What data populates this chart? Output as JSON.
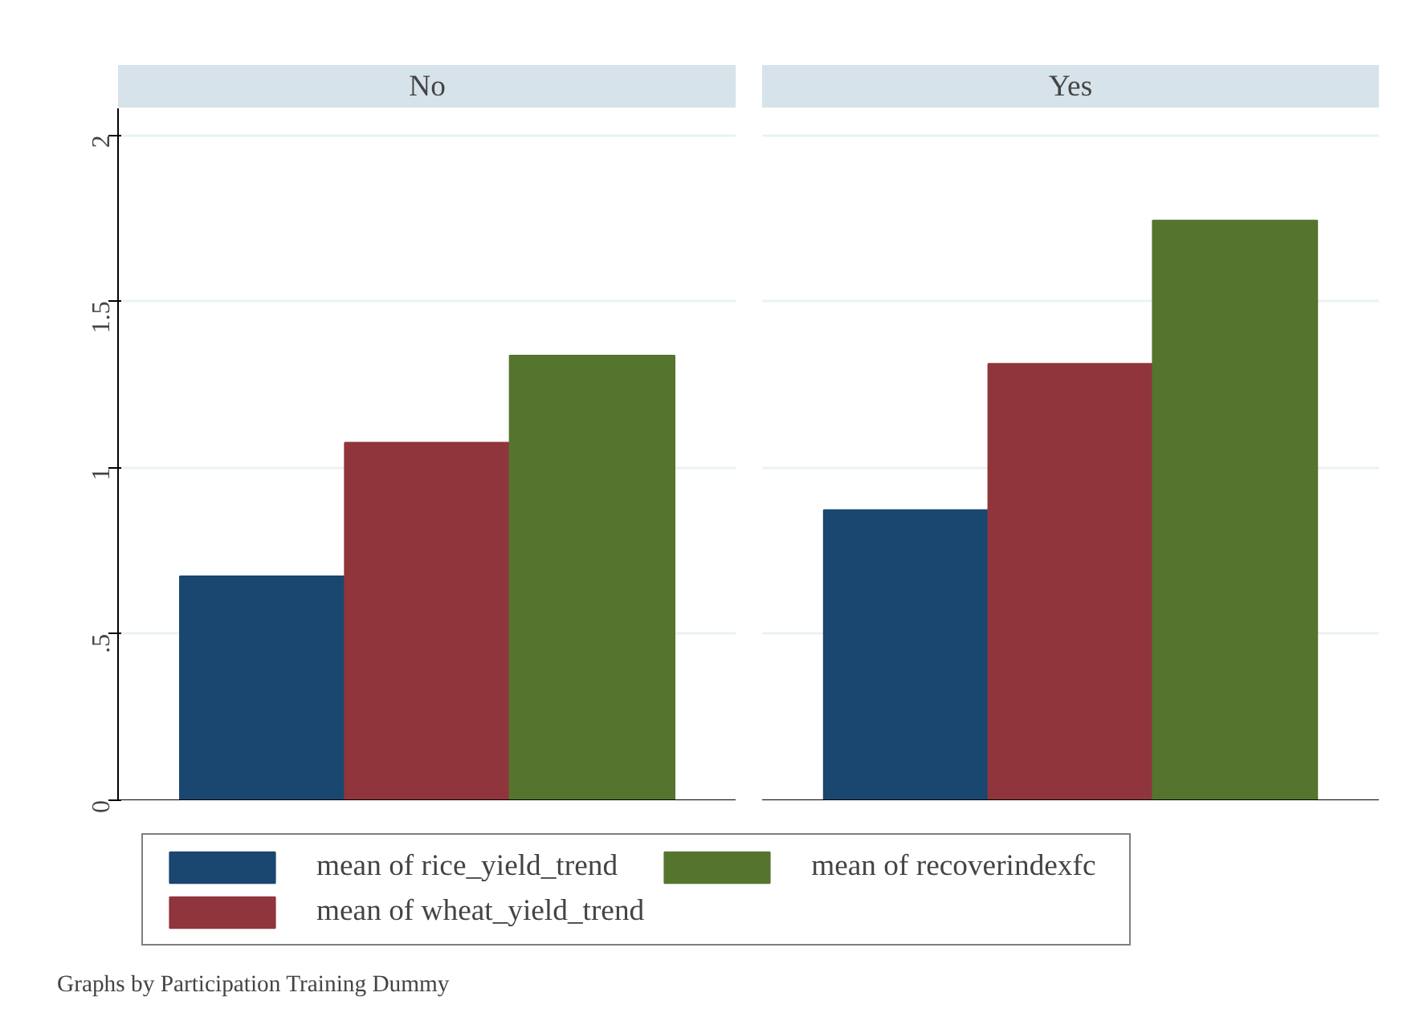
{
  "chart_data": {
    "type": "bar",
    "categories": [
      "No",
      "Yes"
    ],
    "series": [
      {
        "name": "mean of rice_yield_trend",
        "color": "#1a476f",
        "values": [
          0.673,
          0.872
        ]
      },
      {
        "name": "mean of wheat_yield_trend",
        "color": "#90353b",
        "values": [
          1.075,
          1.312
        ]
      },
      {
        "name": "mean of recoverindexfc",
        "color": "#55752f",
        "values": [
          1.337,
          1.743
        ]
      }
    ],
    "ylim": [
      0,
      2.08
    ],
    "yticks": [
      0,
      {
        "value": 0.5,
        "label": ".5"
      },
      1,
      1.5,
      2
    ],
    "grid": "y",
    "legend": "bottom",
    "annotations": [
      "Graphs by Participation Training Dummy"
    ]
  }
}
